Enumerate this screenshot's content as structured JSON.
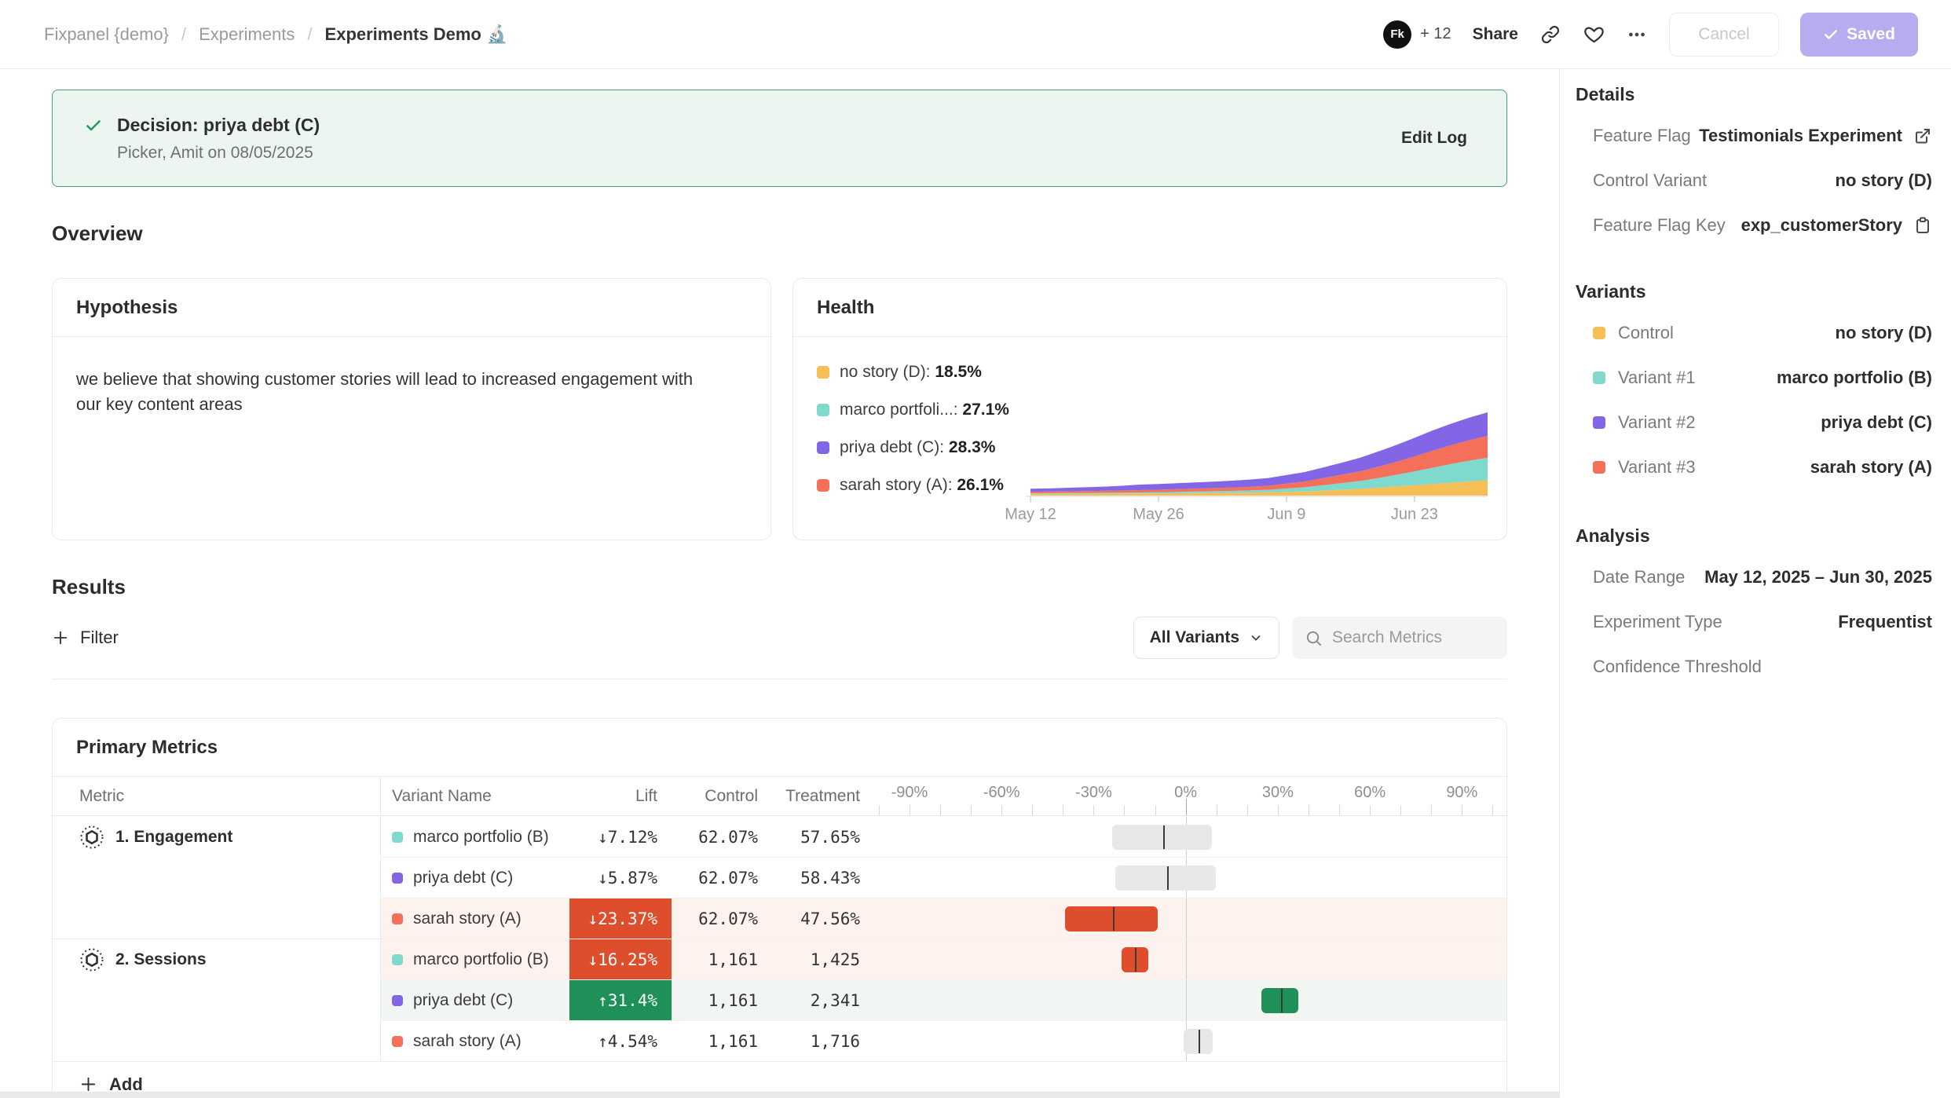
{
  "theme": {
    "accent_purple": "#b6adf1",
    "green": "#1f9158",
    "red": "#de4e2c",
    "banner_bg": "#ecf5f0",
    "banner_border": "#44a477",
    "tint_red": "#fdf2ee",
    "tint_green": "#f2f6f3",
    "neutral_bar": "#e8e8e8"
  },
  "header": {
    "breadcrumb": [
      {
        "label": "Fixpanel {demo}"
      },
      {
        "label": "Experiments"
      },
      {
        "label": "Experiments Demo",
        "emoji": "🔬"
      }
    ],
    "avatar_label": "Fk",
    "collaborators": "+ 12",
    "share_label": "Share",
    "cancel_label": "Cancel",
    "saved_label": "Saved"
  },
  "banner": {
    "title": "Decision: priya debt (C)",
    "subtitle": "Picker, Amit on 08/05/2025",
    "action": "Edit Log"
  },
  "overview": {
    "heading": "Overview",
    "hypothesis": {
      "title": "Hypothesis",
      "body": "we believe that showing customer stories will lead to increased engagement with our key content areas"
    },
    "health": {
      "title": "Health",
      "legend": [
        {
          "name": "no story (D)",
          "value": "18.5%",
          "color": "#F5BE56"
        },
        {
          "name": "marco portfoli...",
          "value": "27.1%",
          "color": "#7FD9CC"
        },
        {
          "name": "priya debt (C)",
          "value": "28.3%",
          "color": "#8266E5"
        },
        {
          "name": "sarah story (A)",
          "value": "26.1%",
          "color": "#F4705A"
        }
      ]
    }
  },
  "results": {
    "heading": "Results",
    "filter_label": "Filter",
    "variants_dropdown": "All Variants",
    "search_placeholder": "Search Metrics"
  },
  "primary_metrics": {
    "title": "Primary Metrics",
    "columns": {
      "metric": "Metric",
      "variant": "Variant Name",
      "lift": "Lift",
      "control": "Control",
      "treatment": "Treatment"
    },
    "axis": {
      "min": -101.5,
      "max": 104.5,
      "tick_values": [
        -90,
        -60,
        -30,
        0,
        30,
        60,
        90
      ],
      "tick_labels": [
        "-90%",
        "-60%",
        "-30%",
        "0%",
        "30%",
        "60%",
        "90%"
      ]
    },
    "add_label": "Add",
    "groups": [
      {
        "metric_label": "1. Engagement",
        "rows": [
          {
            "variant": "marco portfolio (B)",
            "swatch": "#7FD9CC",
            "lift_label": "↓7.12%",
            "lift_value": -7.12,
            "ci": [
              -24.0,
              8.5
            ],
            "style": "neutral",
            "control": "62.07%",
            "treatment": "57.65%"
          },
          {
            "variant": "priya debt (C)",
            "swatch": "#8266E5",
            "lift_label": "↓5.87%",
            "lift_value": -5.87,
            "ci": [
              -23.0,
              9.9
            ],
            "style": "neutral",
            "control": "62.07%",
            "treatment": "58.43%"
          },
          {
            "variant": "sarah story (A)",
            "swatch": "#F4705A",
            "lift_label": "↓23.37%",
            "lift_value": -23.37,
            "ci": [
              -39.3,
              -9.0
            ],
            "style": "negative",
            "control": "62.07%",
            "treatment": "47.56%"
          }
        ]
      },
      {
        "metric_label": "2. Sessions",
        "rows": [
          {
            "variant": "marco portfolio (B)",
            "swatch": "#7FD9CC",
            "lift_label": "↓16.25%",
            "lift_value": -16.25,
            "ci": [
              -21.0,
              -12.3
            ],
            "style": "negative",
            "control": "1,161",
            "treatment": "1,425"
          },
          {
            "variant": "priya debt (C)",
            "swatch": "#8266E5",
            "lift_label": "↑31.4%",
            "lift_value": 31.4,
            "ci": [
              24.6,
              36.6
            ],
            "style": "positive",
            "control": "1,161",
            "treatment": "2,341"
          },
          {
            "variant": "sarah story (A)",
            "swatch": "#F4705A",
            "lift_label": "↑4.54%",
            "lift_value": 4.54,
            "ci": [
              -0.8,
              8.7
            ],
            "style": "neutral",
            "control": "1,161",
            "treatment": "1,716"
          }
        ]
      }
    ]
  },
  "sidebar": {
    "details": {
      "heading": "Details",
      "rows": [
        {
          "label": "Feature Flag",
          "value": "Testimonials Experiment",
          "icon": "external-link"
        },
        {
          "label": "Control Variant",
          "value": "no story (D)"
        },
        {
          "label": "Feature Flag Key",
          "value": "exp_customerStory",
          "icon": "clipboard"
        }
      ]
    },
    "variants": {
      "heading": "Variants",
      "rows": [
        {
          "label": "Control",
          "color": "#F5BE56",
          "value": "no story (D)"
        },
        {
          "label": "Variant #1",
          "color": "#7FD9CC",
          "value": "marco portfolio (B)"
        },
        {
          "label": "Variant #2",
          "color": "#8266E5",
          "value": "priya debt (C)"
        },
        {
          "label": "Variant #3",
          "color": "#F4705A",
          "value": "sarah story (A)"
        }
      ]
    },
    "analysis": {
      "heading": "Analysis",
      "rows": [
        {
          "label": "Date Range",
          "value": "May 12, 2025 – Jun 30, 2025"
        },
        {
          "label": "Experiment Type",
          "value": "Frequentist"
        },
        {
          "label": "Confidence Threshold",
          "value": ""
        }
      ]
    }
  },
  "chart_data": [
    {
      "id": "health-exposure-chart",
      "type": "area",
      "stacked": true,
      "title": "Health",
      "grid": false,
      "legend_position": "left",
      "x_tick_labels": [
        "May 12",
        "May 26",
        "Jun 9",
        "Jun 23"
      ],
      "x_tick_indices": [
        0,
        7,
        14,
        21
      ],
      "x_range": "May 12 – Jun 30 (26 points, ~2-day interval)",
      "y_unit": "relative exposure (final shares shown in legend)",
      "series": [
        {
          "name": "no story (D)",
          "final_share": 18.5,
          "color": "#F5BE56",
          "values": [
            2,
            2,
            2.1,
            2.2,
            2.3,
            2.4,
            2.5,
            2.6,
            2.8,
            3,
            3.2,
            3.4,
            3.6,
            4,
            4.5,
            5,
            6,
            7,
            8,
            9.5,
            11,
            12.5,
            14,
            15.5,
            17,
            18.5
          ]
        },
        {
          "name": "marco portfolio (B)",
          "final_share": 27.1,
          "color": "#7FD9CC",
          "values": [
            0.8,
            0.9,
            1,
            1,
            1.1,
            1.2,
            1.3,
            1.5,
            1.7,
            1.9,
            2.1,
            2.3,
            2.6,
            3,
            4,
            5,
            6.5,
            8,
            9.5,
            11.5,
            14,
            16.5,
            19.5,
            22.5,
            25,
            27.1
          ]
        },
        {
          "name": "sarah story (A)",
          "final_share": 26.1,
          "color": "#F4705A",
          "values": [
            1.8,
            1.9,
            2,
            2.2,
            2.4,
            2.6,
            2.8,
            3,
            3.2,
            3.5,
            3.8,
            4,
            4.3,
            4.8,
            5.8,
            7,
            8.5,
            10,
            11.5,
            13.5,
            15.5,
            18,
            20.5,
            22.5,
            24.5,
            26.1
          ]
        },
        {
          "name": "priya debt (C)",
          "final_share": 28.3,
          "color": "#8266E5",
          "values": [
            3.6,
            3.8,
            4.2,
            4.6,
            5,
            5.6,
            6.6,
            6.9,
            7.1,
            7.4,
            7.7,
            8.2,
            8.7,
            9.3,
            10.3,
            11.3,
            12.8,
            14.3,
            16.3,
            18.3,
            20.3,
            22.3,
            24.3,
            25.8,
            27.2,
            28.3
          ]
        }
      ]
    },
    {
      "id": "lift-confidence-intervals",
      "type": "bar",
      "orientation": "horizontal",
      "axis": {
        "min": -101.5,
        "max": 104.5,
        "unit": "%",
        "ticks": [
          -90,
          -60,
          -30,
          0,
          30,
          60,
          90
        ]
      },
      "rows": [
        {
          "metric": "1. Engagement",
          "variant": "marco portfolio (B)",
          "lift_pct": -7.12,
          "ci_low": -24.0,
          "ci_high": 8.5,
          "color": "neutral"
        },
        {
          "metric": "1. Engagement",
          "variant": "priya debt (C)",
          "lift_pct": -5.87,
          "ci_low": -23.0,
          "ci_high": 9.9,
          "color": "neutral"
        },
        {
          "metric": "1. Engagement",
          "variant": "sarah story (A)",
          "lift_pct": -23.37,
          "ci_low": -39.3,
          "ci_high": -9.0,
          "color": "red"
        },
        {
          "metric": "2. Sessions",
          "variant": "marco portfolio (B)",
          "lift_pct": -16.25,
          "ci_low": -21.0,
          "ci_high": -12.3,
          "color": "red"
        },
        {
          "metric": "2. Sessions",
          "variant": "priya debt (C)",
          "lift_pct": 31.4,
          "ci_low": 24.6,
          "ci_high": 36.6,
          "color": "green"
        },
        {
          "metric": "2. Sessions",
          "variant": "sarah story (A)",
          "lift_pct": 4.54,
          "ci_low": -0.8,
          "ci_high": 8.7,
          "color": "neutral"
        }
      ]
    }
  ]
}
